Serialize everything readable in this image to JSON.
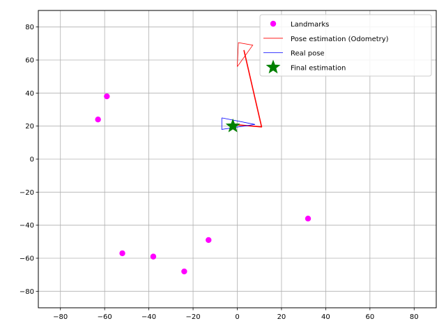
{
  "chart_data": {
    "type": "scatter",
    "xlim": [
      -90,
      90
    ],
    "ylim": [
      -90,
      90
    ],
    "x_ticks": [
      -80,
      -60,
      -40,
      -20,
      0,
      20,
      40,
      60,
      80
    ],
    "y_ticks": [
      -80,
      -60,
      -40,
      -20,
      0,
      20,
      40,
      60,
      80
    ],
    "grid": true,
    "legend_position": "top-right",
    "legend": [
      {
        "key": "landmarks",
        "label": "Landmarks",
        "color": "#ff00ff",
        "marker": "circle"
      },
      {
        "key": "odometry",
        "label": "Pose estimation (Odometry)",
        "color": "#ff0000",
        "marker": "line"
      },
      {
        "key": "real",
        "label": "Real pose",
        "color": "#0000ff",
        "marker": "line"
      },
      {
        "key": "final",
        "label": "Final estimation",
        "color": "#008000",
        "marker": "star"
      }
    ],
    "series": [
      {
        "name": "Landmarks",
        "type": "scatter",
        "color": "#ff00ff",
        "points": [
          [
            -59,
            38
          ],
          [
            -63,
            24
          ],
          [
            32,
            -36
          ],
          [
            -13,
            -49
          ],
          [
            -52,
            -57
          ],
          [
            -38,
            -59
          ],
          [
            -24,
            -68
          ]
        ]
      },
      {
        "name": "Pose estimation (Odometry)",
        "type": "line",
        "color": "#ff0000",
        "path": [
          [
            -2,
            21
          ],
          [
            11,
            19.5
          ],
          [
            3,
            66
          ]
        ],
        "pose_marker": [
          [
            0,
            56
          ],
          [
            7,
            69
          ],
          [
            0.5,
            70.5
          ],
          [
            0,
            56
          ]
        ]
      },
      {
        "name": "Real pose",
        "type": "line",
        "color": "#0000ff",
        "pose_marker": [
          [
            -7,
            25
          ],
          [
            8,
            21
          ],
          [
            -7,
            18
          ],
          [
            -7,
            25
          ]
        ]
      },
      {
        "name": "Final estimation",
        "type": "scatter",
        "color": "#008000",
        "marker": "star",
        "points": [
          [
            -2,
            20
          ]
        ]
      }
    ]
  }
}
